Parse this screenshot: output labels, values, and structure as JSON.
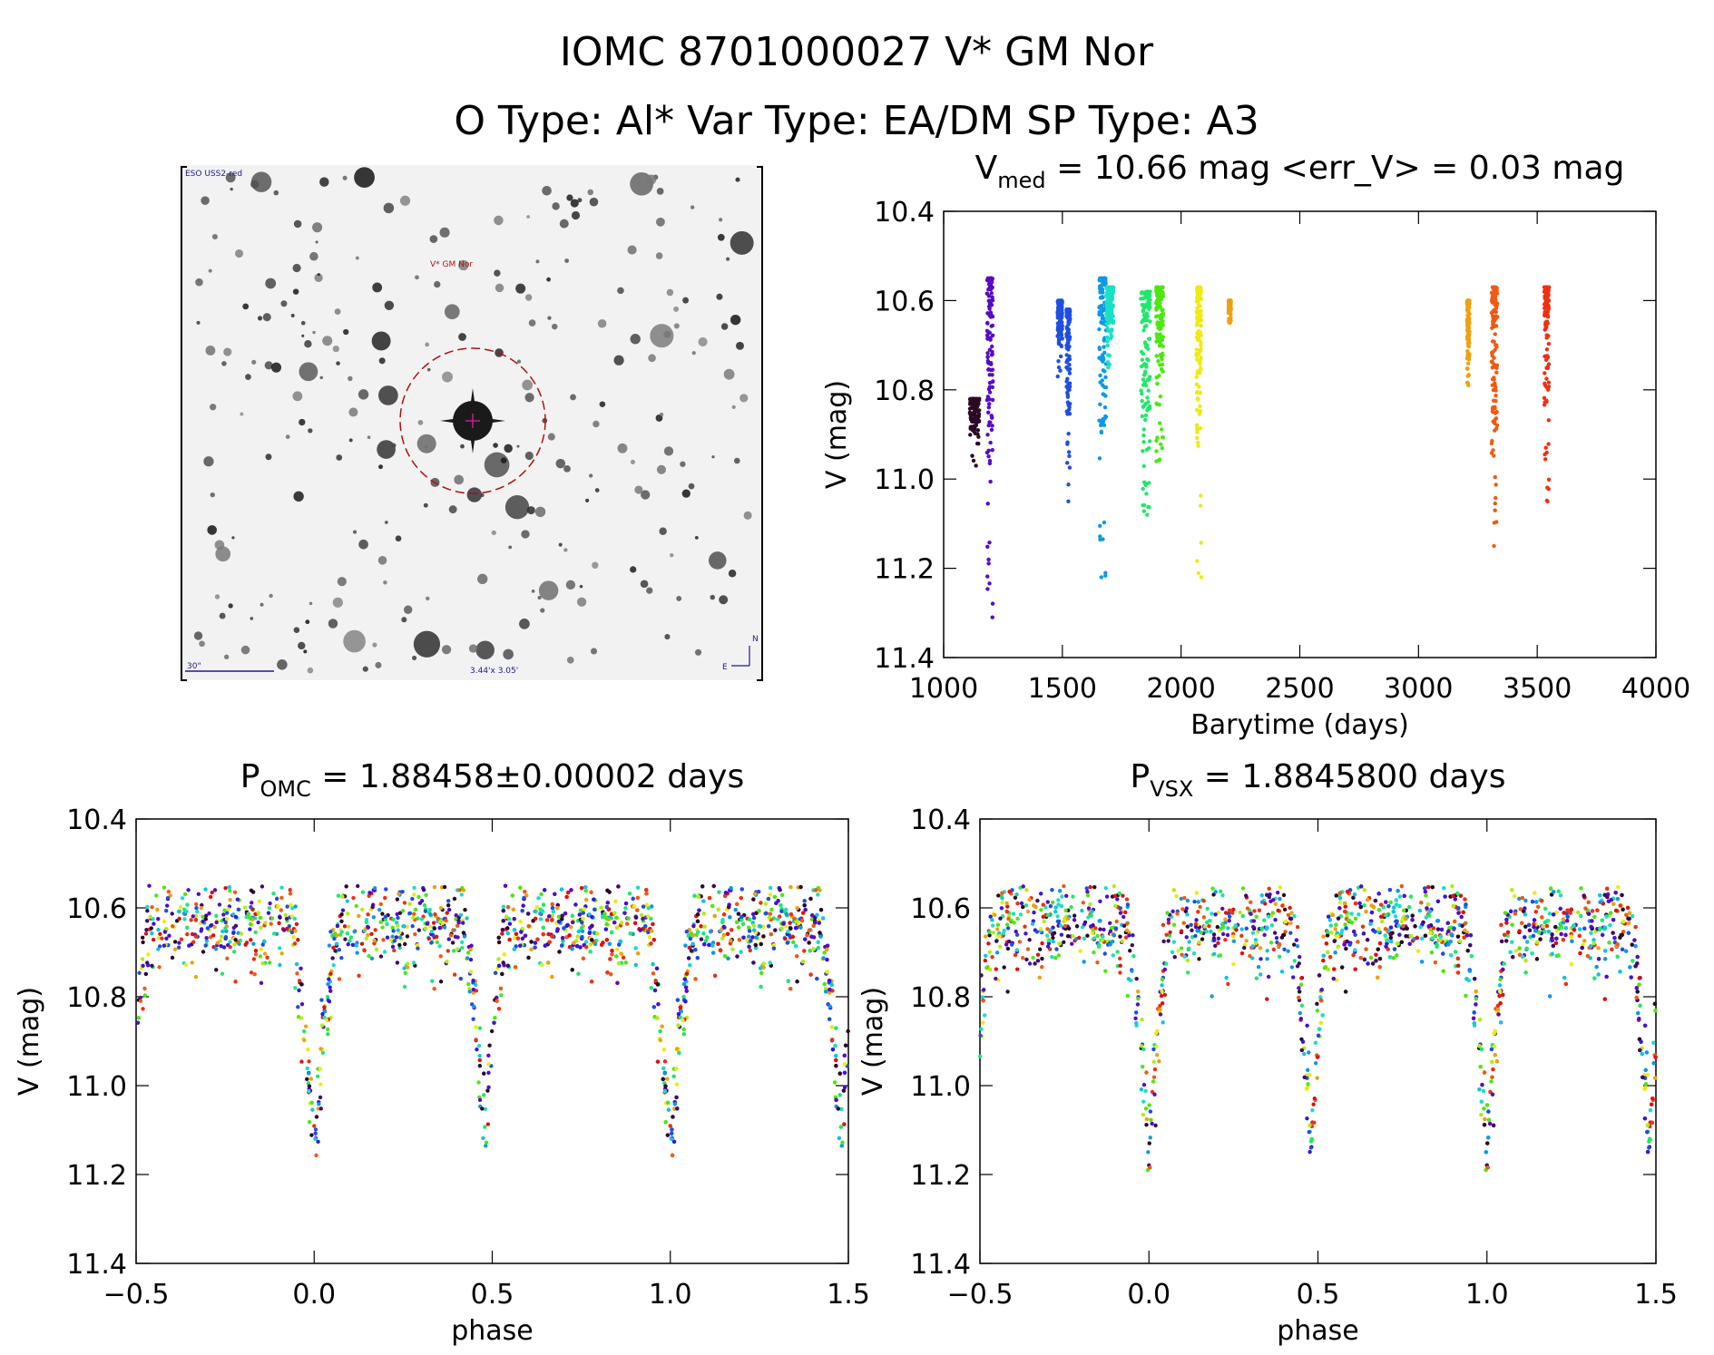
{
  "header": {
    "line1": "IOMC 8701000027    V* GM Nor",
    "line2": "O Type: Al*  Var Type: EA/DM  SP Type: A3"
  },
  "finder": {
    "survey_label": "ESO USS2-red",
    "target_label": "V* GM Nor",
    "scale_label": "30\"",
    "size_label": "3.44'x 3.05'",
    "north_label": "N",
    "east_label": "E"
  },
  "colors": {
    "palette": [
      "#2b0a26",
      "#400a66",
      "#5a0ac4",
      "#3a16d6",
      "#1f4fe0",
      "#1098e6",
      "#10c4e6",
      "#1ae0c4",
      "#20e86a",
      "#4ce810",
      "#b4ec10",
      "#f0ea10",
      "#f0a010",
      "#f05a10",
      "#f03010",
      "#e01010"
    ]
  },
  "chart_data": [
    {
      "id": "lightcurve",
      "type": "scatter",
      "title": {
        "prefix": "V",
        "sub": "med",
        "suffix": " = 10.66 mag <err_V> = 0.03 mag"
      },
      "xlabel": "Barytime (days)",
      "ylabel": "V (mag)",
      "xlim": [
        1000,
        4000
      ],
      "ylim": [
        11.4,
        10.4
      ],
      "xticks": [
        1000,
        1500,
        2000,
        2500,
        3000,
        3500,
        4000
      ],
      "yticks": [
        10.4,
        10.6,
        10.8,
        11.0,
        11.2,
        11.4
      ],
      "clusters": [
        {
          "x": 1130,
          "width": 40,
          "ymin": 10.82,
          "ymax": 10.97,
          "color_index": 0
        },
        {
          "x": 1195,
          "width": 25,
          "ymin": 10.55,
          "ymax": 11.31,
          "color_index": 2
        },
        {
          "x": 1490,
          "width": 20,
          "ymin": 10.6,
          "ymax": 10.77,
          "color_index": 4
        },
        {
          "x": 1525,
          "width": 15,
          "ymin": 10.62,
          "ymax": 11.05,
          "color_index": 4
        },
        {
          "x": 1670,
          "width": 30,
          "ymin": 10.55,
          "ymax": 11.22,
          "color_index": 5
        },
        {
          "x": 1700,
          "width": 30,
          "ymin": 10.57,
          "ymax": 10.75,
          "color_index": 7
        },
        {
          "x": 1850,
          "width": 40,
          "ymin": 10.58,
          "ymax": 11.08,
          "color_index": 8
        },
        {
          "x": 1910,
          "width": 30,
          "ymin": 10.57,
          "ymax": 10.96,
          "color_index": 9
        },
        {
          "x": 2075,
          "width": 20,
          "ymin": 10.57,
          "ymax": 11.22,
          "color_index": 11
        },
        {
          "x": 2205,
          "width": 10,
          "ymin": 10.6,
          "ymax": 10.65,
          "color_index": 12
        },
        {
          "x": 3210,
          "width": 10,
          "ymin": 10.6,
          "ymax": 10.79,
          "color_index": 12
        },
        {
          "x": 3320,
          "width": 25,
          "ymin": 10.57,
          "ymax": 11.15,
          "color_index": 13
        },
        {
          "x": 3540,
          "width": 20,
          "ymin": 10.57,
          "ymax": 11.05,
          "color_index": 14
        }
      ]
    },
    {
      "id": "phase_omc",
      "type": "scatter",
      "title": {
        "prefix": "P",
        "sub": "OMC",
        "suffix": " = 1.88458±0.00002 days"
      },
      "xlabel": "phase",
      "ylabel": "V (mag)",
      "xlim": [
        -0.5,
        1.5
      ],
      "ylim": [
        11.4,
        10.4
      ],
      "xticks": [
        -0.5,
        0.0,
        0.5,
        1.0,
        1.5
      ],
      "yticks": [
        10.4,
        10.6,
        10.8,
        11.0,
        11.2,
        11.4
      ],
      "model": {
        "baseline": 10.64,
        "primary_depth": 0.5,
        "primary_phase": 0.0,
        "primary_halfwidth": 0.07,
        "secondary_depth": 0.47,
        "secondary_phase": 0.48,
        "secondary_halfwidth": 0.06,
        "scatter": 0.05
      }
    },
    {
      "id": "phase_vsx",
      "type": "scatter",
      "title": {
        "prefix": "P",
        "sub": "VSX",
        "suffix": " = 1.8845800 days"
      },
      "xlabel": "phase",
      "ylabel": "V (mag)",
      "xlim": [
        -0.5,
        1.5
      ],
      "ylim": [
        11.4,
        10.4
      ],
      "xticks": [
        -0.5,
        0.0,
        0.5,
        1.0,
        1.5
      ],
      "yticks": [
        10.4,
        10.6,
        10.8,
        11.0,
        11.2,
        11.4
      ],
      "model": {
        "baseline": 10.64,
        "primary_depth": 0.5,
        "primary_phase": 0.0,
        "primary_halfwidth": 0.07,
        "secondary_depth": 0.47,
        "secondary_phase": 0.48,
        "secondary_halfwidth": 0.06,
        "scatter": 0.05
      }
    }
  ]
}
